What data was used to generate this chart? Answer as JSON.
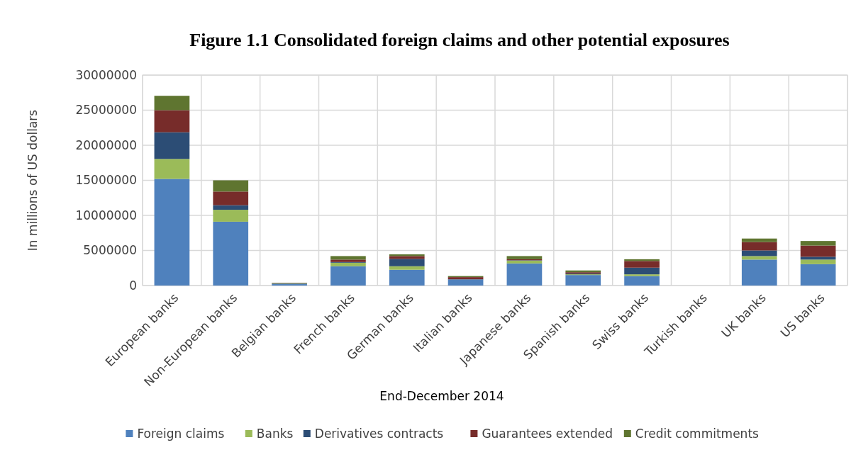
{
  "chart_data": {
    "type": "bar",
    "title": "Figure 1.1 Consolidated foreign claims and other potential exposures",
    "xlabel": "End-December 2014",
    "ylabel": "In millions of US dollars",
    "categories": [
      "European banks",
      "Non-European banks",
      "Belgian banks",
      "French banks",
      "German banks",
      "Italian banks",
      "Japanese banks",
      "Spanish banks",
      "Swiss banks",
      "Turkish banks",
      "UK banks",
      "US banks"
    ],
    "stacked": true,
    "ylim": [
      0,
      30000000
    ],
    "yticks": [
      0,
      5000000,
      10000000,
      15000000,
      20000000,
      25000000,
      30000000
    ],
    "grid": true,
    "legend": "bottom",
    "series": [
      {
        "name": "Foreign claims",
        "color": "#4f81bd",
        "values": [
          15200000,
          9100000,
          200000,
          2750000,
          2250000,
          850000,
          3150000,
          1500000,
          1350000,
          0,
          3700000,
          3050000
        ]
      },
      {
        "name": "Banks",
        "color": "#9bbb59",
        "values": [
          2850000,
          1700000,
          50000,
          500000,
          500000,
          null,
          400000,
          100000,
          250000,
          0,
          500000,
          650000
        ]
      },
      {
        "name": "Derivatives contracts",
        "color": "#2c4d75",
        "values": [
          3800000,
          650000,
          50000,
          100000,
          1050000,
          50000,
          50000,
          100000,
          950000,
          0,
          800000,
          400000
        ]
      },
      {
        "name": "Guarantees extended",
        "color": "#772c2a",
        "values": [
          3150000,
          1950000,
          50000,
          350000,
          400000,
          300000,
          150000,
          200000,
          950000,
          0,
          1200000,
          1600000
        ]
      },
      {
        "name": "Credit commitments",
        "color": "#5f7530",
        "values": [
          2050000,
          1600000,
          50000,
          500000,
          250000,
          150000,
          450000,
          250000,
          250000,
          0,
          500000,
          650000
        ]
      }
    ]
  }
}
